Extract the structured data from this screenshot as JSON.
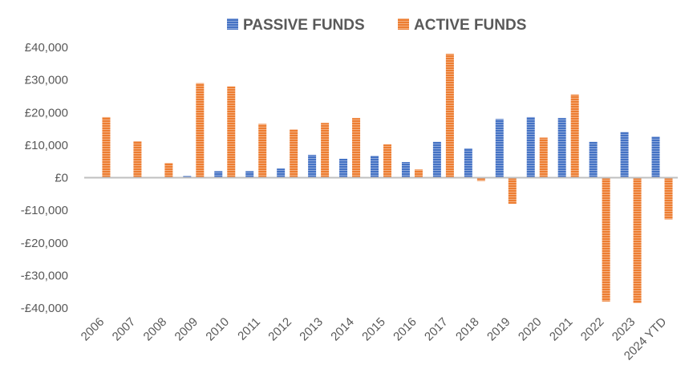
{
  "chart_data": {
    "type": "bar",
    "title": "",
    "xlabel": "",
    "ylabel": "",
    "categories": [
      "2006",
      "2007",
      "2008",
      "2009",
      "2010",
      "2011",
      "2012",
      "2013",
      "2014",
      "2015",
      "2016",
      "2017",
      "2018",
      "2019",
      "2020",
      "2021",
      "2022",
      "2023",
      "2024 YTD"
    ],
    "series": [
      {
        "name": "PASSIVE FUNDS",
        "color": "#4472c4",
        "values": [
          0,
          0,
          0,
          500,
          2000,
          2000,
          2800,
          7000,
          5800,
          6700,
          4800,
          11000,
          9000,
          18000,
          18600,
          18300,
          11000,
          14000,
          12600
        ]
      },
      {
        "name": "ACTIVE FUNDS",
        "color": "#ed7d31",
        "values": [
          18600,
          11200,
          4500,
          29000,
          28000,
          16500,
          14800,
          16800,
          18300,
          10200,
          2500,
          38000,
          -1000,
          -8000,
          12300,
          25500,
          -38000,
          -38500,
          -12800
        ]
      }
    ],
    "ylim": [
      -40000,
      40000
    ],
    "yticks": [
      "£40,000",
      "£30,000",
      "£20,000",
      "£10,000",
      "£0",
      "-£10,000",
      "-£20,000",
      "-£30,000",
      "-£40,000"
    ],
    "ytick_values": [
      40000,
      30000,
      20000,
      10000,
      0,
      -10000,
      -20000,
      -30000,
      -40000
    ],
    "legend_position": "top",
    "grid": false
  }
}
